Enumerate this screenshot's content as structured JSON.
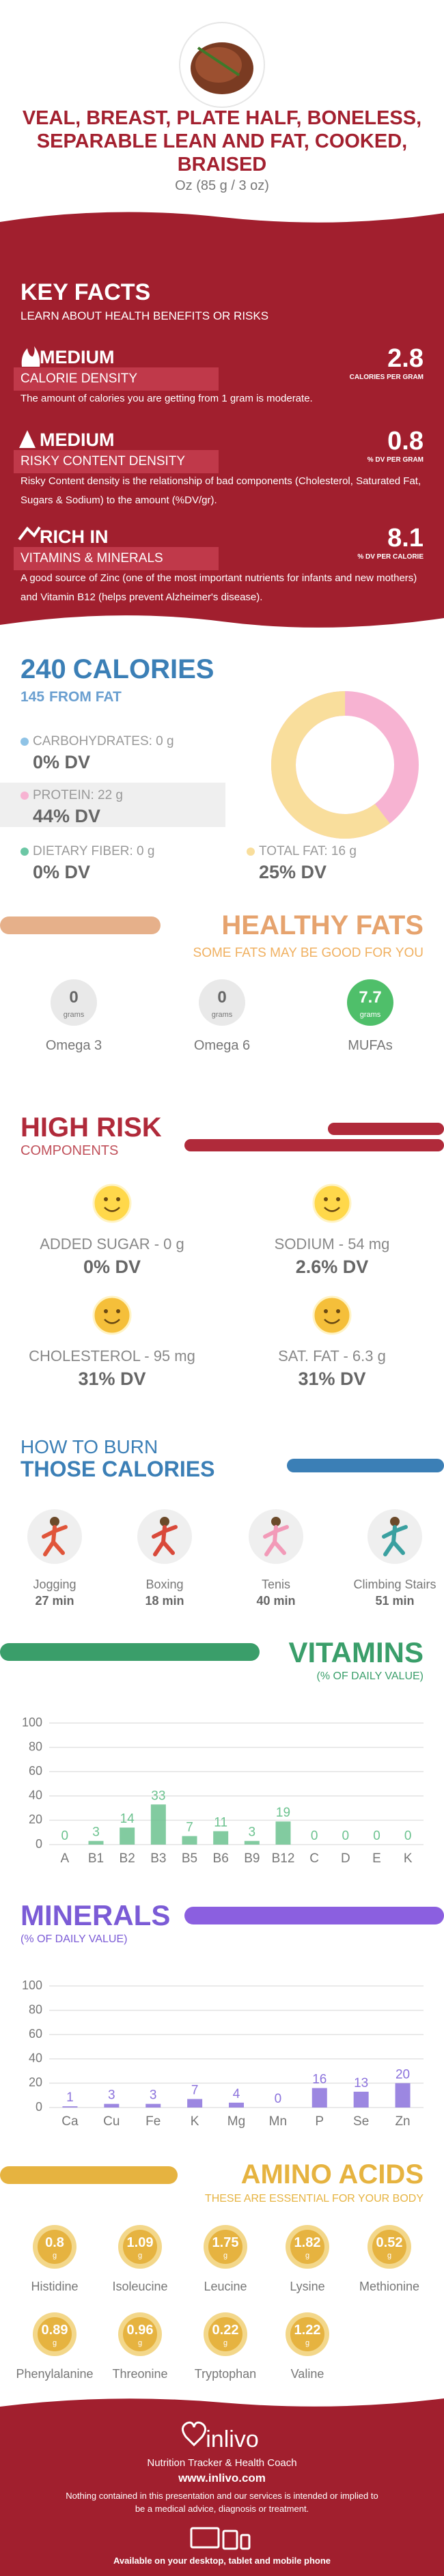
{
  "header": {
    "title": "VEAL, BREAST, PLATE HALF, BONELESS, SEPARABLE LEAN AND FAT, COOKED, BRAISED",
    "serving": "Oz (85 g / 3 oz)"
  },
  "key_facts": {
    "title": "KEY FACTS",
    "subtitle": "LEARN ABOUT HEALTH BENEFITS OR RISKS",
    "items": [
      {
        "level": "MEDIUM",
        "name": "CALORIE DENSITY",
        "value": 2.8,
        "unit": "CALORIES PER GRAM",
        "text": "The amount of calories you are getting from 1 gram is moderate."
      },
      {
        "level": "MEDIUM",
        "name": "RISKY CONTENT DENSITY",
        "value": 0.8,
        "unit": "% DV PER GRAM",
        "text": "Risky Content density is the relationship of bad components (Cholesterol, Saturated Fat, Sugars & Sodium) to the amount (%DV/gr)."
      },
      {
        "level": "RICH  IN",
        "name": "VITAMINS & MINERALS",
        "value": 8.1,
        "unit": "% DV PER CALORIE",
        "text": "A good source of Zinc (one of the most important nutrients for infants and new mothers) and Vitamin B12 (helps prevent Alzheimer's disease)."
      }
    ]
  },
  "calories": {
    "value": 240,
    "label": "CALORIES",
    "fat_value": 145,
    "fat_label": "FROM FAT",
    "nutrients": [
      {
        "label": "CARBOHYDRATES: 0 g",
        "dv": "0% DV",
        "color": "#8fc3e6"
      },
      {
        "label": "PROTEIN: 22 g",
        "dv": "44% DV",
        "color": "#f7b3d2"
      },
      {
        "label": "DIETARY FIBER: 0 g",
        "dv": "0% DV",
        "color": "#6cc7a5"
      },
      {
        "label": "TOTAL FAT: 16 g",
        "dv": "25% DV",
        "color": "#f9de9c"
      }
    ]
  },
  "healthy_fats": {
    "title": "HEALTHY FATS",
    "subtitle": "SOME FATS MAY BE GOOD FOR YOU",
    "unit": "grams",
    "items": [
      {
        "name": "Omega 3",
        "value": 0,
        "color": "#e9e9e9"
      },
      {
        "name": "Omega 6",
        "value": 0,
        "color": "#e9e9e9"
      },
      {
        "name": "MUFAs",
        "value": 7.7,
        "color": "#4fbf6a"
      }
    ]
  },
  "high_risk": {
    "title": "HIGH RISK",
    "subtitle": "COMPONENTS",
    "items": [
      {
        "label": "ADDED SUGAR - 0 g",
        "dv": "0% DV"
      },
      {
        "label": "SODIUM - 54 mg",
        "dv": "2.6% DV"
      },
      {
        "label": "CHOLESTEROL - 95 mg",
        "dv": "31% DV"
      },
      {
        "label": "SAT. FAT - 6.3 g",
        "dv": "31% DV"
      }
    ]
  },
  "burn": {
    "title_1": "HOW TO BURN",
    "title_2": "THOSE CALORIES",
    "activities": [
      {
        "name": "Jogging",
        "time": "27 min"
      },
      {
        "name": "Boxing",
        "time": "18 min"
      },
      {
        "name": "Tenis",
        "time": "40 min"
      },
      {
        "name": "Climbing Stairs",
        "time": "51 min"
      }
    ]
  },
  "vitamins": {
    "type": "bar",
    "title": "VITAMINS",
    "subtitle": "(% OF DAILY VALUE)",
    "color": "#6cc28f",
    "categories": [
      "A",
      "B1",
      "B2",
      "B3",
      "B5",
      "B6",
      "B9",
      "B12",
      "C",
      "D",
      "E",
      "K"
    ],
    "values": [
      0,
      3,
      14,
      33,
      7,
      11,
      3,
      19,
      0,
      0,
      0,
      0
    ],
    "ylim": [
      0,
      100
    ],
    "yticks": [
      0,
      20,
      40,
      60,
      80,
      100
    ],
    "grid": true
  },
  "minerals": {
    "type": "bar",
    "title": "MINERALS",
    "subtitle": "(% OF DAILY VALUE)",
    "color": "#8b72dc",
    "categories": [
      "Ca",
      "Cu",
      "Fe",
      "K",
      "Mg",
      "Mn",
      "P",
      "Se",
      "Zn"
    ],
    "values": [
      1,
      3,
      3,
      7,
      4,
      0,
      16,
      13,
      20
    ],
    "ylim": [
      0,
      100
    ],
    "yticks": [
      0,
      20,
      40,
      60,
      80,
      100
    ],
    "grid": true
  },
  "amino_acids": {
    "title": "AMINO ACIDS",
    "subtitle": "THESE ARE ESSENTIAL FOR YOUR BODY",
    "unit": "g",
    "items": [
      {
        "name": "Histidine",
        "value": 0.8
      },
      {
        "name": "Isoleucine",
        "value": 1.09
      },
      {
        "name": "Leucine",
        "value": 1.75
      },
      {
        "name": "Lysine",
        "value": 1.82
      },
      {
        "name": "Methionine",
        "value": 0.52
      },
      {
        "name": "Phenylalanine",
        "value": 0.89
      },
      {
        "name": "Threonine",
        "value": 0.96
      },
      {
        "name": "Tryptophan",
        "value": 0.22
      },
      {
        "name": "Valine",
        "value": 1.22
      }
    ]
  },
  "footer": {
    "brand": "inlivo",
    "tagline": "Nutrition Tracker & Health Coach",
    "url": "www.inlivo.com",
    "disclaimer": "Nothing contained in this presentation and our services is intended or implied to be a medical advice, diagnosis or treatment.",
    "availability": "Available on your desktop, tablet and mobile phone"
  }
}
